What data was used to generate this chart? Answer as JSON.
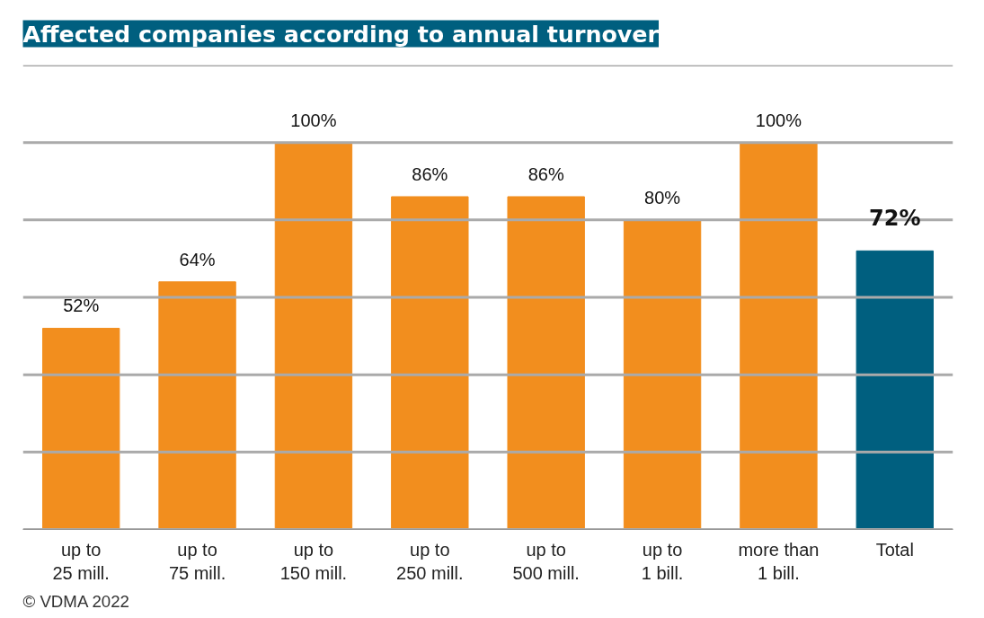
{
  "chart_data": {
    "type": "bar",
    "title": "Affected companies according to annual turnover",
    "categories": [
      "up to\n25 mill.",
      "up to\n75 mill.",
      "up to\n150 mill.",
      "up to\n250 mill.",
      "up to\n500 mill.",
      "up to\n1 bill.",
      "more than\n1 bill.",
      "Total"
    ],
    "values": [
      52,
      64,
      100,
      86,
      86,
      80,
      100,
      72
    ],
    "colors": [
      "#f28e1e",
      "#f28e1e",
      "#f28e1e",
      "#f28e1e",
      "#f28e1e",
      "#f28e1e",
      "#f28e1e",
      "#005f7f"
    ],
    "value_labels": [
      "52%",
      "64%",
      "100%",
      "86%",
      "86%",
      "80%",
      "100%",
      "72%"
    ],
    "ylim": [
      0,
      120
    ],
    "yticks": [
      {
        "value": 0,
        "label": null
      },
      {
        "value": 20,
        "label": null
      },
      {
        "value": 40,
        "label": null
      },
      {
        "value": 60,
        "label": null
      },
      {
        "value": 80,
        "label": null
      },
      {
        "value": 100,
        "label": null
      },
      {
        "value": 120,
        "label": null
      }
    ],
    "grid": "y",
    "tick_labels": "x",
    "annotations": [
      "© VDMA 2022"
    ]
  }
}
